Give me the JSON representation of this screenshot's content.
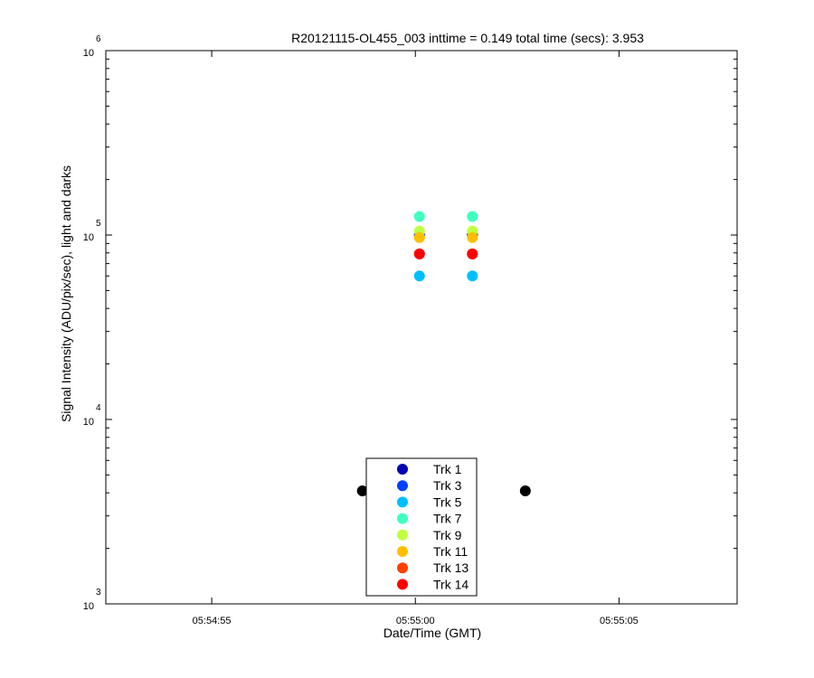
{
  "chart_data": {
    "type": "scatter",
    "title": "R20121115-OL455_003 inttime = 0.149 total time (secs): 3.953",
    "xlabel": "Date/Time (GMT)",
    "ylabel": "Signal Intensity (ADU/pix/sec), light and darks",
    "x_tick_labels": [
      "05:54:55",
      "05:55:00",
      "05:55:05"
    ],
    "x_ticks": [
      "2012-11-15T05:54:55",
      "2012-11-15T05:55:00",
      "2012-11-15T05:55:05"
    ],
    "xlim": [
      "2012-11-15T05:54:52.4",
      "2012-11-15T05:55:07.9"
    ],
    "y_scale": "log",
    "ylim": [
      1000,
      1000000
    ],
    "y_tick_labels": [
      {
        "base": "10",
        "exp": "3",
        "value": 1000
      },
      {
        "base": "10",
        "exp": "4",
        "value": 10000
      },
      {
        "base": "10",
        "exp": "5",
        "value": 100000
      },
      {
        "base": "10",
        "exp": "6",
        "value": 1000000
      }
    ],
    "grid": false,
    "legend_position": "bottom-center",
    "legend": [
      {
        "label": "Trk 1",
        "color": "#0000b4"
      },
      {
        "label": "Trk 3",
        "color": "#0040ff"
      },
      {
        "label": "Trk 5",
        "color": "#00bfff"
      },
      {
        "label": "Trk 7",
        "color": "#40ffbf"
      },
      {
        "label": "Trk 9",
        "color": "#bfff40"
      },
      {
        "label": "Trk 11",
        "color": "#ffbf00"
      },
      {
        "label": "Trk 13",
        "color": "#ff4000"
      },
      {
        "label": "Trk 14",
        "color": "#ff0000"
      }
    ],
    "series": [
      {
        "name": "Trk 1",
        "color": "#0000b4",
        "x": [
          "2012-11-15T05:55:00.1",
          "2012-11-15T05:55:01.4"
        ],
        "y": [
          100000,
          100000
        ]
      },
      {
        "name": "Trk 3",
        "color": "#0040ff",
        "x": [
          "2012-11-15T05:55:00.1",
          "2012-11-15T05:55:01.4"
        ],
        "y": [
          100000,
          100000
        ]
      },
      {
        "name": "Trk 5",
        "color": "#00bfff",
        "x": [
          "2012-11-15T05:55:00.1",
          "2012-11-15T05:55:01.4"
        ],
        "y": [
          60000,
          60000
        ]
      },
      {
        "name": "Trk 7",
        "color": "#40ffbf",
        "x": [
          "2012-11-15T05:55:00.1",
          "2012-11-15T05:55:01.4"
        ],
        "y": [
          126000,
          126000
        ]
      },
      {
        "name": "Trk 9",
        "color": "#bfff40",
        "x": [
          "2012-11-15T05:55:00.1",
          "2012-11-15T05:55:01.4"
        ],
        "y": [
          105000,
          105000
        ]
      },
      {
        "name": "Trk 11",
        "color": "#ffbf00",
        "x": [
          "2012-11-15T05:55:00.1",
          "2012-11-15T05:55:01.4"
        ],
        "y": [
          97000,
          97000
        ]
      },
      {
        "name": "Trk 13",
        "color": "#ff4000",
        "x": [
          "2012-11-15T05:55:00.1",
          "2012-11-15T05:55:01.4"
        ],
        "y": [
          79000,
          79000
        ]
      },
      {
        "name": "Trk 14",
        "color": "#ff0000",
        "x": [
          "2012-11-15T05:55:00.1",
          "2012-11-15T05:55:01.4"
        ],
        "y": [
          79000,
          79000
        ]
      },
      {
        "color": "#000000",
        "x": [
          "2012-11-15T05:54:58.7",
          "2012-11-15T05:55:02.7"
        ],
        "y": [
          4100,
          4100
        ]
      }
    ]
  }
}
